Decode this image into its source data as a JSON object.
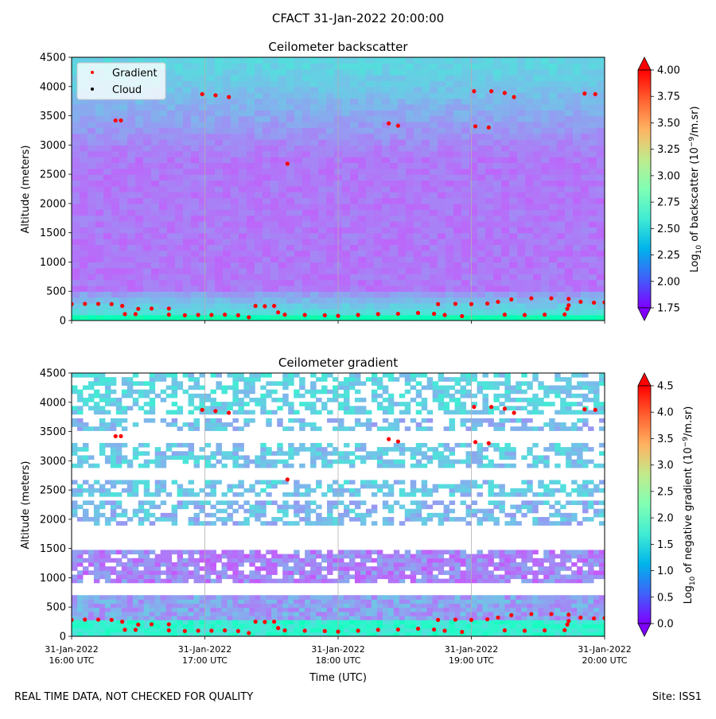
{
  "figure": {
    "suptitle": "CFACT 31-Jan-2022 20:00:00",
    "footer_left": "REAL TIME DATA, NOT CHECKED FOR QUALITY",
    "footer_right": "Site: ISS1"
  },
  "legend": {
    "placement": "upper-left",
    "entries": [
      {
        "label": "Gradient",
        "color": "#ff0000"
      },
      {
        "label": "Cloud",
        "color": "#000000"
      }
    ]
  },
  "chart_data": [
    {
      "type": "heatmap",
      "title": "Ceilometer backscatter",
      "xlabel": "",
      "ylabel": "Altitude (meters)",
      "ylim": [
        0,
        4500
      ],
      "y_ticks": [
        0,
        500,
        1000,
        1500,
        2000,
        2500,
        3000,
        3500,
        4000,
        4500
      ],
      "xlim": [
        "31-Jan-2022 16:00 UTC",
        "31-Jan-2022 20:00 UTC"
      ],
      "x_ticks_hours": [
        16,
        17,
        18,
        19,
        20
      ],
      "grid": "vertical",
      "colorbar": {
        "label": "Log10 of backscatter (10^-9/m.sr)",
        "label_main": "Log",
        "label_sub": "10",
        "label_rest": " of backscatter (10",
        "label_sup": "−9",
        "label_tail": "/m.sr)",
        "min": 1.75,
        "max": 4.0,
        "ticks": [
          "1.75",
          "2.00",
          "2.25",
          "2.50",
          "2.75",
          "3.00",
          "3.25",
          "3.50",
          "3.75",
          "4.00"
        ],
        "extend": "both",
        "colormap": "rainbow"
      },
      "field_summary": [
        {
          "altitude_range": [
            0,
            150
          ],
          "log10_value": 2.9
        },
        {
          "altitude_range": [
            150,
            500
          ],
          "log10_value": 2.5
        },
        {
          "altitude_range": [
            500,
            2800
          ],
          "log10_value": 2.1
        },
        {
          "altitude_range": [
            2800,
            4500
          ],
          "log10_value": 2.35
        }
      ]
    },
    {
      "type": "heatmap",
      "title": "Ceilometer gradient",
      "xlabel": "Time (UTC)",
      "ylabel": "Altitude (meters)",
      "ylim": [
        0,
        4500
      ],
      "y_ticks": [
        0,
        500,
        1000,
        1500,
        2000,
        2500,
        3000,
        3500,
        4000,
        4500
      ],
      "x_tick_labels": [
        {
          "line1": "31-Jan-2022",
          "line2": "16:00 UTC"
        },
        {
          "line1": "31-Jan-2022",
          "line2": "17:00 UTC"
        },
        {
          "line1": "31-Jan-2022",
          "line2": "18:00 UTC"
        },
        {
          "line1": "31-Jan-2022",
          "line2": "19:00 UTC"
        },
        {
          "line1": "31-Jan-2022",
          "line2": "20:00 UTC"
        }
      ],
      "grid": "vertical",
      "colorbar": {
        "label": "Log10 of negative gradient (10^-9/m.sr)",
        "label_main": "Log",
        "label_sub": "10",
        "label_rest": " of negative gradient (10",
        "label_sup": "−9",
        "label_tail": "/m.sr)",
        "min": 0.0,
        "max": 4.5,
        "ticks": [
          "0.0",
          "0.5",
          "1.0",
          "1.5",
          "2.0",
          "2.5",
          "3.0",
          "3.5",
          "4.0",
          "4.5"
        ],
        "extend": "both",
        "colormap": "rainbow"
      },
      "layers": [
        {
          "altitude_range": [
            0,
            250
          ],
          "log10_value": 1.8,
          "coverage": "continuous"
        },
        {
          "altitude_range": [
            250,
            700
          ],
          "log10_value": 1.0,
          "coverage": "continuous"
        },
        {
          "altitude_range": [
            900,
            1500
          ],
          "log10_value": 0.8,
          "coverage": "mostly"
        },
        {
          "altitude_range": [
            1900,
            2300
          ],
          "log10_value": 1.2,
          "coverage": "patchy"
        },
        {
          "altitude_range": [
            2400,
            2700
          ],
          "log10_value": 1.3,
          "coverage": "patchy"
        },
        {
          "altitude_range": [
            2900,
            3300
          ],
          "log10_value": 1.3,
          "coverage": "patchy"
        },
        {
          "altitude_range": [
            3500,
            3700
          ],
          "log10_value": 1.2,
          "coverage": "patchy"
        },
        {
          "altitude_range": [
            3800,
            4500
          ],
          "log10_value": 1.4,
          "coverage": "patchy"
        }
      ]
    }
  ],
  "gradient_points": [
    {
      "hour": 16.0,
      "alt": 280
    },
    {
      "hour": 16.1,
      "alt": 285
    },
    {
      "hour": 16.2,
      "alt": 285
    },
    {
      "hour": 16.3,
      "alt": 280
    },
    {
      "hour": 16.38,
      "alt": 250
    },
    {
      "hour": 16.4,
      "alt": 110
    },
    {
      "hour": 16.48,
      "alt": 110
    },
    {
      "hour": 16.5,
      "alt": 200
    },
    {
      "hour": 16.6,
      "alt": 205
    },
    {
      "hour": 16.73,
      "alt": 205
    },
    {
      "hour": 16.73,
      "alt": 100
    },
    {
      "hour": 16.85,
      "alt": 90
    },
    {
      "hour": 16.95,
      "alt": 95
    },
    {
      "hour": 17.05,
      "alt": 95
    },
    {
      "hour": 17.15,
      "alt": 100
    },
    {
      "hour": 17.25,
      "alt": 90
    },
    {
      "hour": 17.33,
      "alt": 55
    },
    {
      "hour": 17.38,
      "alt": 250
    },
    {
      "hour": 17.45,
      "alt": 245
    },
    {
      "hour": 17.52,
      "alt": 250
    },
    {
      "hour": 17.55,
      "alt": 140
    },
    {
      "hour": 17.6,
      "alt": 100
    },
    {
      "hour": 17.75,
      "alt": 95
    },
    {
      "hour": 17.9,
      "alt": 90
    },
    {
      "hour": 18.0,
      "alt": 80
    },
    {
      "hour": 18.15,
      "alt": 95
    },
    {
      "hour": 18.3,
      "alt": 110
    },
    {
      "hour": 18.45,
      "alt": 115
    },
    {
      "hour": 18.6,
      "alt": 130
    },
    {
      "hour": 18.72,
      "alt": 115
    },
    {
      "hour": 18.8,
      "alt": 95
    },
    {
      "hour": 18.93,
      "alt": 75
    },
    {
      "hour": 18.75,
      "alt": 280
    },
    {
      "hour": 18.88,
      "alt": 285
    },
    {
      "hour": 19.0,
      "alt": 280
    },
    {
      "hour": 19.12,
      "alt": 290
    },
    {
      "hour": 19.2,
      "alt": 320
    },
    {
      "hour": 19.3,
      "alt": 360
    },
    {
      "hour": 19.45,
      "alt": 380
    },
    {
      "hour": 19.6,
      "alt": 380
    },
    {
      "hour": 19.73,
      "alt": 370
    },
    {
      "hour": 19.82,
      "alt": 320
    },
    {
      "hour": 19.92,
      "alt": 305
    },
    {
      "hour": 20.0,
      "alt": 310
    },
    {
      "hour": 19.25,
      "alt": 100
    },
    {
      "hour": 19.4,
      "alt": 95
    },
    {
      "hour": 19.55,
      "alt": 100
    },
    {
      "hour": 19.7,
      "alt": 105
    },
    {
      "hour": 19.72,
      "alt": 200
    },
    {
      "hour": 19.73,
      "alt": 260
    },
    {
      "hour": 16.33,
      "alt": 3420
    },
    {
      "hour": 16.37,
      "alt": 3420
    },
    {
      "hour": 16.98,
      "alt": 3870
    },
    {
      "hour": 17.08,
      "alt": 3850
    },
    {
      "hour": 17.18,
      "alt": 3820
    },
    {
      "hour": 17.62,
      "alt": 2680
    },
    {
      "hour": 18.38,
      "alt": 3370
    },
    {
      "hour": 18.45,
      "alt": 3330
    },
    {
      "hour": 19.02,
      "alt": 3920
    },
    {
      "hour": 19.15,
      "alt": 3920
    },
    {
      "hour": 19.25,
      "alt": 3890
    },
    {
      "hour": 19.32,
      "alt": 3820
    },
    {
      "hour": 19.03,
      "alt": 3320
    },
    {
      "hour": 19.13,
      "alt": 3300
    },
    {
      "hour": 19.85,
      "alt": 3880
    },
    {
      "hour": 19.93,
      "alt": 3870
    }
  ]
}
